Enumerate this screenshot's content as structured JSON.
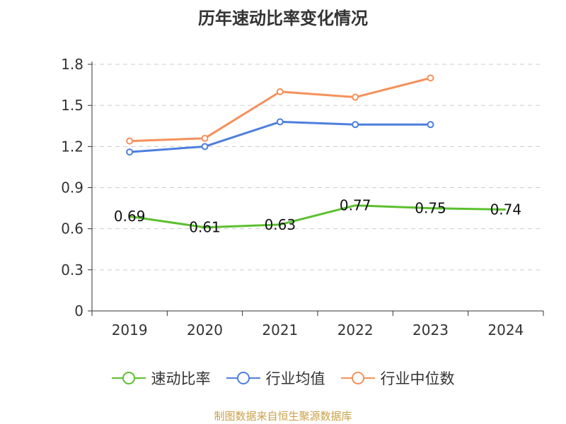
{
  "chart_data": {
    "type": "line",
    "title": "历年速动比率变化情况",
    "categories": [
      "2019",
      "2020",
      "2021",
      "2022",
      "2023",
      "2024"
    ],
    "yticks": [
      "0",
      "0.3",
      "0.6",
      "0.9",
      "1.2",
      "1.5",
      "1.8"
    ],
    "ylim": [
      0,
      1.8
    ],
    "grid": true,
    "legend_position": "bottom",
    "series": [
      {
        "name": "速动比率",
        "color": "#5cc02f",
        "values": [
          0.69,
          0.61,
          0.63,
          0.77,
          0.75,
          0.74
        ],
        "labels": [
          "0.69",
          "0.61",
          "0.63",
          "0.77",
          "0.75",
          "0.74"
        ]
      },
      {
        "name": "行业均值",
        "color": "#4d7fdc",
        "values": [
          1.16,
          1.2,
          1.38,
          1.36,
          1.36,
          null
        ]
      },
      {
        "name": "行业中位数",
        "color": "#f5915a",
        "values": [
          1.24,
          1.26,
          1.6,
          1.56,
          1.7,
          null
        ]
      }
    ]
  },
  "source": "制图数据来自恒生聚源数据库"
}
